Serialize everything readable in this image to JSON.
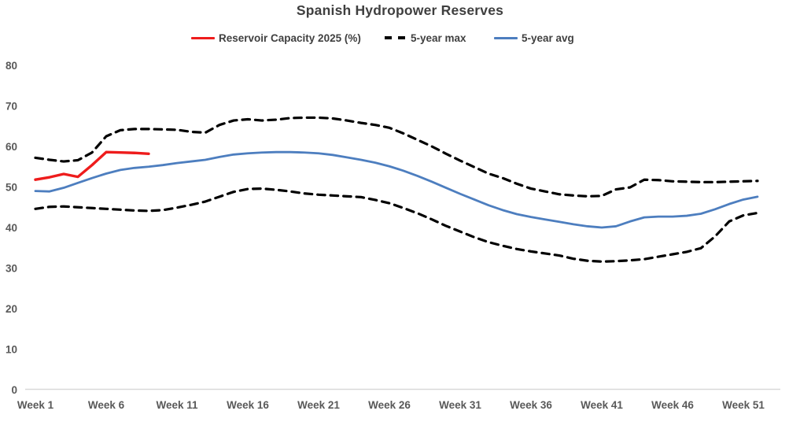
{
  "chart": {
    "title": "Spanish Hydropower Reserves",
    "legend": [
      {
        "label": "Reservoir Capacity 2025 (%)",
        "color": "#ee1c1c",
        "style": "solid"
      },
      {
        "label": "5-year max",
        "color": "#000000",
        "style": "dashed"
      },
      {
        "label": "5-year avg",
        "color": "#4d7ebf",
        "style": "solid"
      }
    ],
    "colors": {
      "reservoir_2025": "#ee1c1c",
      "five_year_max": "#000000",
      "five_year_avg": "#4d7ebf",
      "axis_text": "#595959",
      "title_text": "#3f3f3f",
      "baseline": "#d9d9d9"
    }
  },
  "chart_data": {
    "type": "line",
    "title": "Spanish Hydropower Reserves",
    "xlabel": "",
    "ylabel": "",
    "grid": false,
    "legend_position": "top",
    "ylim": [
      0,
      80
    ],
    "xlim": [
      1,
      52
    ],
    "yticks": [
      0,
      10,
      20,
      30,
      40,
      50,
      60,
      70,
      80
    ],
    "xticks": [
      {
        "week": 1,
        "label": "Week 1"
      },
      {
        "week": 6,
        "label": "Week 6"
      },
      {
        "week": 11,
        "label": "Week 11"
      },
      {
        "week": 16,
        "label": "Week 16"
      },
      {
        "week": 21,
        "label": "Week 21"
      },
      {
        "week": 26,
        "label": "Week 26"
      },
      {
        "week": 31,
        "label": "Week 31"
      },
      {
        "week": 36,
        "label": "Week 36"
      },
      {
        "week": 41,
        "label": "Week 41"
      },
      {
        "week": 46,
        "label": "Week 46"
      },
      {
        "week": 51,
        "label": "Week 51"
      }
    ],
    "series": [
      {
        "id": "reservoir-capacity-2025",
        "name": "Reservoir Capacity 2025 (%)",
        "color": "#ee1c1c",
        "dashed": false,
        "width": 3.4,
        "in_legend": true,
        "start_week": 1,
        "values": [
          51.8,
          52.4,
          53.2,
          52.5,
          55.4,
          58.6,
          58.5,
          58.4,
          58.2
        ]
      },
      {
        "id": "five-year-max",
        "name": "5-year max",
        "color": "#000000",
        "dashed": true,
        "width": 3.2,
        "in_legend": true,
        "start_week": 1,
        "values": [
          57.2,
          56.7,
          56.3,
          56.6,
          58.5,
          62.5,
          64.0,
          64.3,
          64.3,
          64.2,
          64.1,
          63.6,
          63.4,
          65.3,
          66.4,
          66.7,
          66.4,
          66.6,
          67.0,
          67.1,
          67.1,
          66.9,
          66.4,
          65.8,
          65.3,
          64.6,
          63.2,
          61.6,
          60.0,
          58.2,
          56.5,
          54.9,
          53.3,
          52.2,
          50.8,
          49.6,
          48.9,
          48.2,
          47.9,
          47.7,
          47.8,
          49.4,
          49.9,
          51.8,
          51.7,
          51.4,
          51.3,
          51.2,
          51.2,
          51.3,
          51.4,
          51.5
        ]
      },
      {
        "id": "five-year-avg",
        "name": "5-year avg",
        "color": "#4d7ebf",
        "dashed": false,
        "width": 2.8,
        "in_legend": true,
        "start_week": 1,
        "values": [
          49.0,
          48.9,
          49.8,
          51.0,
          52.2,
          53.3,
          54.2,
          54.7,
          55.0,
          55.4,
          55.9,
          56.3,
          56.7,
          57.4,
          58.0,
          58.3,
          58.5,
          58.6,
          58.6,
          58.5,
          58.3,
          57.9,
          57.3,
          56.7,
          56.0,
          55.1,
          54.0,
          52.7,
          51.3,
          49.8,
          48.3,
          46.9,
          45.5,
          44.3,
          43.3,
          42.6,
          42.0,
          41.4,
          40.8,
          40.3,
          40.0,
          40.3,
          41.5,
          42.5,
          42.7,
          42.7,
          42.9,
          43.4,
          44.5,
          45.8,
          46.9,
          47.6
        ]
      },
      {
        "id": "five-year-min",
        "name": "5-year min (unlabeled dashed band line)",
        "color": "#000000",
        "dashed": true,
        "width": 3.2,
        "in_legend": false,
        "start_week": 1,
        "values": [
          44.6,
          45.1,
          45.2,
          45.0,
          44.8,
          44.6,
          44.4,
          44.2,
          44.1,
          44.3,
          44.9,
          45.6,
          46.4,
          47.6,
          48.8,
          49.5,
          49.6,
          49.3,
          48.9,
          48.4,
          48.1,
          47.9,
          47.7,
          47.5,
          46.8,
          46.0,
          44.8,
          43.5,
          42.0,
          40.4,
          39.0,
          37.6,
          36.4,
          35.5,
          34.7,
          34.1,
          33.6,
          33.1,
          32.3,
          31.8,
          31.6,
          31.7,
          31.9,
          32.2,
          32.8,
          33.4,
          34.0,
          34.9,
          37.8,
          41.5,
          43.0,
          43.6
        ]
      }
    ]
  }
}
